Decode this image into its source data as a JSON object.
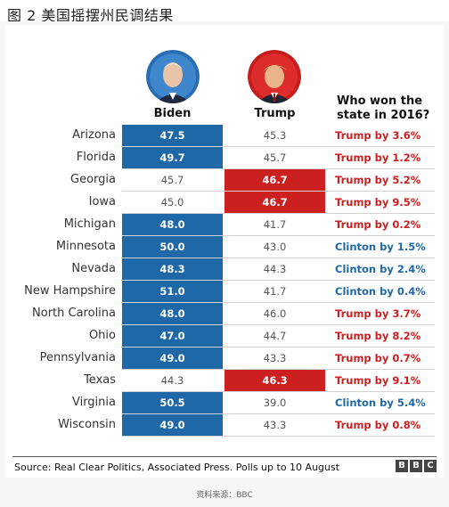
{
  "figure": {
    "title": "图 2  美国摇摆州民调结果"
  },
  "header": {
    "biden_label": "Biden",
    "trump_label": "Trump",
    "who_won_line1": "Who won the",
    "who_won_line2": "state in 2016?"
  },
  "colors": {
    "biden_lead": "#1f68a8",
    "trump_lead": "#cc1f1f",
    "clinton_text": "#1f68a8",
    "trump_text": "#cc1f1f"
  },
  "chart_data": {
    "type": "table",
    "columns": [
      "Biden",
      "Trump",
      "Who won the state in 2016?"
    ],
    "rows": [
      {
        "state": "Arizona",
        "biden": "47.5",
        "trump": "45.3",
        "won2016": "Trump by 3.6%",
        "winner": "trump",
        "leader": "biden"
      },
      {
        "state": "Florida",
        "biden": "49.7",
        "trump": "45.7",
        "won2016": "Trump by 1.2%",
        "winner": "trump",
        "leader": "biden"
      },
      {
        "state": "Georgia",
        "biden": "45.7",
        "trump": "46.7",
        "won2016": "Trump by 5.2%",
        "winner": "trump",
        "leader": "trump"
      },
      {
        "state": "Iowa",
        "biden": "45.0",
        "trump": "46.7",
        "won2016": "Trump by 9.5%",
        "winner": "trump",
        "leader": "trump"
      },
      {
        "state": "Michigan",
        "biden": "48.0",
        "trump": "41.7",
        "won2016": "Trump by 0.2%",
        "winner": "trump",
        "leader": "biden"
      },
      {
        "state": "Minnesota",
        "biden": "50.0",
        "trump": "43.0",
        "won2016": "Clinton by 1.5%",
        "winner": "clinton",
        "leader": "biden"
      },
      {
        "state": "Nevada",
        "biden": "48.3",
        "trump": "44.3",
        "won2016": "Clinton by 2.4%",
        "winner": "clinton",
        "leader": "biden"
      },
      {
        "state": "New Hampshire",
        "biden": "51.0",
        "trump": "41.7",
        "won2016": "Clinton by 0.4%",
        "winner": "clinton",
        "leader": "biden"
      },
      {
        "state": "North Carolina",
        "biden": "48.0",
        "trump": "46.0",
        "won2016": "Trump by 3.7%",
        "winner": "trump",
        "leader": "biden"
      },
      {
        "state": "Ohio",
        "biden": "47.0",
        "trump": "44.7",
        "won2016": "Trump by 8.2%",
        "winner": "trump",
        "leader": "biden"
      },
      {
        "state": "Pennsylvania",
        "biden": "49.0",
        "trump": "43.3",
        "won2016": "Trump by 0.7%",
        "winner": "trump",
        "leader": "biden"
      },
      {
        "state": "Texas",
        "biden": "44.3",
        "trump": "46.3",
        "won2016": "Trump by 9.1%",
        "winner": "trump",
        "leader": "trump"
      },
      {
        "state": "Virginia",
        "biden": "50.5",
        "trump": "39.0",
        "won2016": "Clinton by 5.4%",
        "winner": "clinton",
        "leader": "biden"
      },
      {
        "state": "Wisconsin",
        "biden": "49.0",
        "trump": "43.3",
        "won2016": "Trump by 0.8%",
        "winner": "trump",
        "leader": "biden"
      }
    ]
  },
  "footer": {
    "source": "Source: Real Clear Politics, Associated Press. Polls up to 10 August",
    "logo_letters": [
      "B",
      "B",
      "C"
    ],
    "credit": "资料来源：BBC"
  }
}
